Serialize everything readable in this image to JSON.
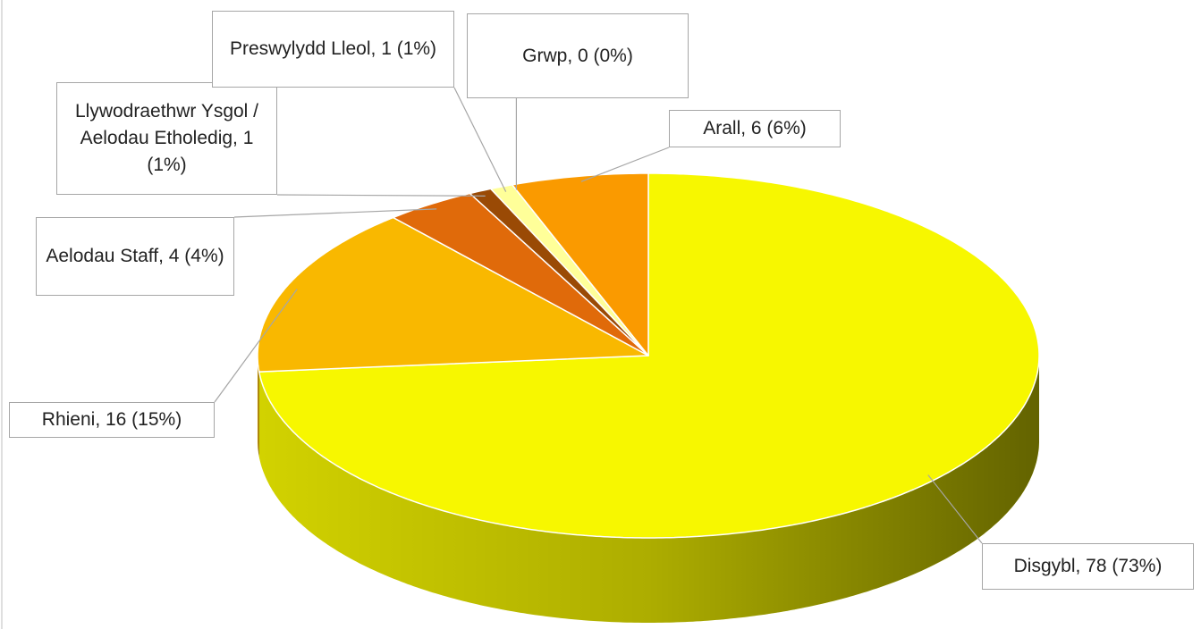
{
  "chart_data": {
    "type": "pie",
    "values": [
      78,
      16,
      4,
      1,
      1,
      0,
      6
    ],
    "value_labels": [
      "Disgybl, 78 (73%)",
      "Rhieni, 16 (15%)",
      "Aelodau Staff, 4 (4%)",
      "Llywodraethwr Ysgol / Aelodau Etholedig, 1  (1%)",
      "Preswylydd Lleol, 1 (1%)",
      "Grwp, 0 (0%)",
      "Arall, 6  (6%)"
    ],
    "colors": [
      "#f7f700",
      "#f9b800",
      "#e06a0a",
      "#9a4a05",
      "#ffff99",
      "#f0c000",
      "#fa9a00"
    ],
    "start_angle": 0,
    "direction": "clockwise",
    "three_d": true
  }
}
